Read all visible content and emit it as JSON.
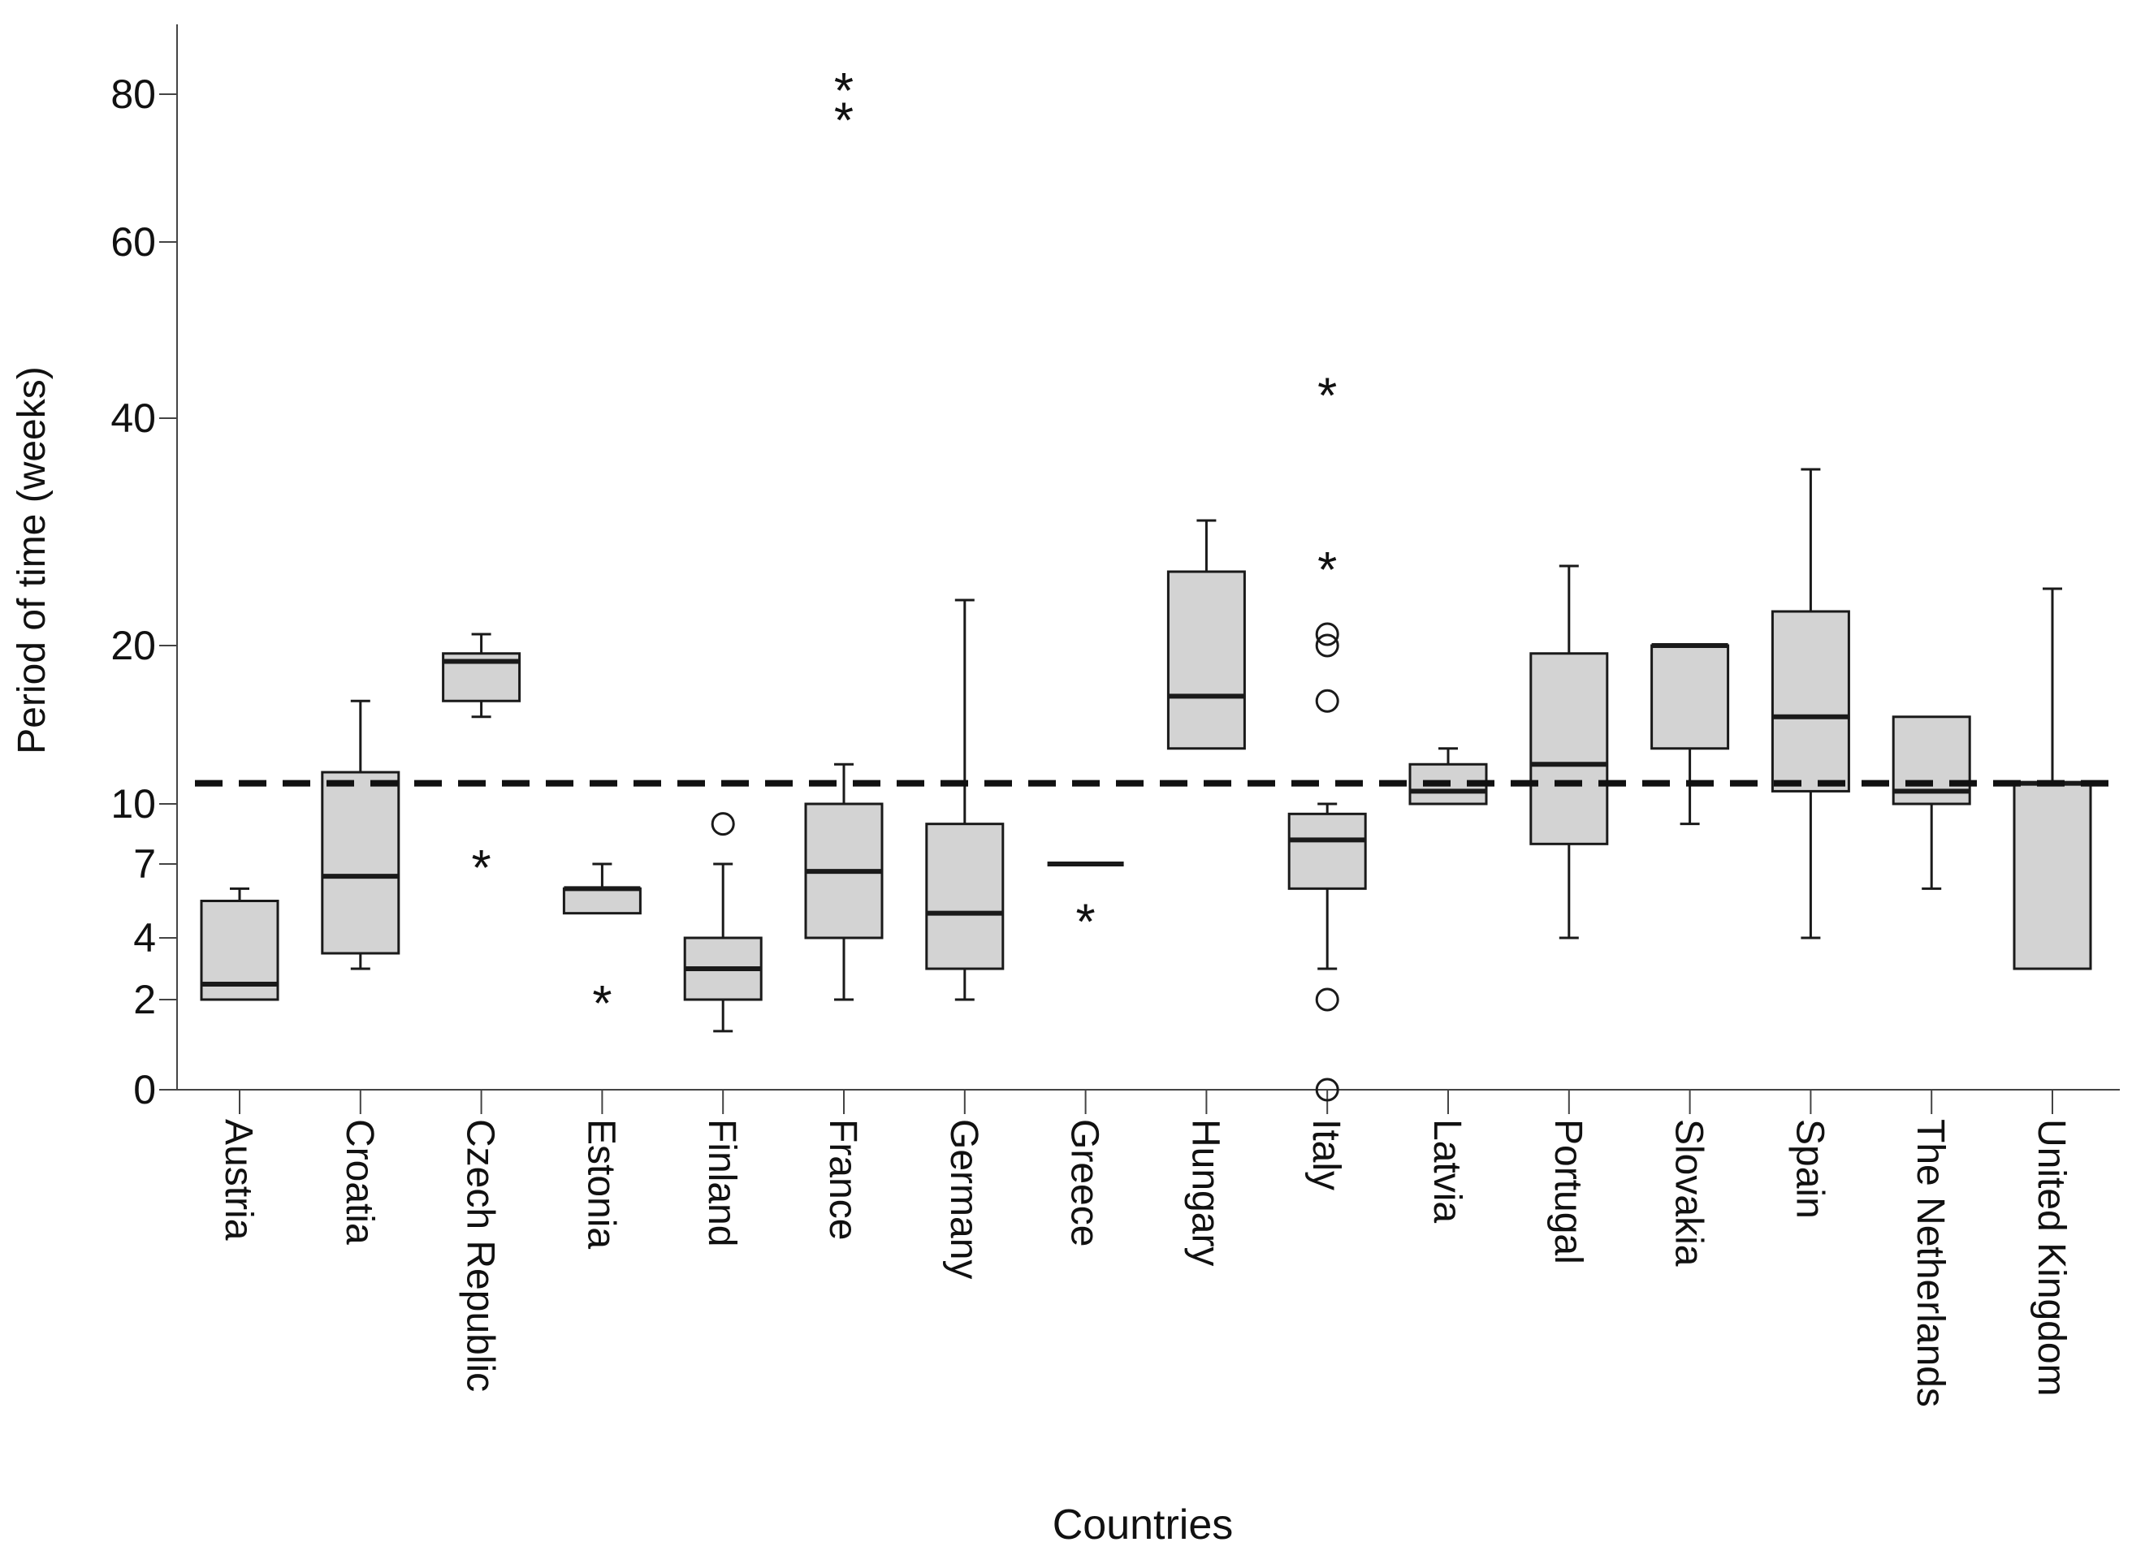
{
  "chart_data": {
    "type": "boxplot",
    "title": "",
    "xlabel": "Countries",
    "ylabel": "Period of time (weeks)",
    "y_ticks": [
      0,
      2,
      4,
      7,
      10,
      20,
      40,
      60,
      80
    ],
    "y_scale": "piecewise (non-linear tick spacing as drawn)",
    "reference_line": {
      "value": 11.3,
      "style": "dashed"
    },
    "categories": [
      "Austria",
      "Croatia",
      "Czech Republic",
      "Estonia",
      "Finland",
      "France",
      "Germany",
      "Greece",
      "Hungary",
      "Italy",
      "Latvia",
      "Portugal",
      "Slovakia",
      "Spain",
      "The Netherlands",
      "United Kingdom"
    ],
    "boxes": [
      {
        "name": "Austria",
        "min": 2,
        "q1": 2,
        "median": 2.5,
        "q3": 5.5,
        "max": 6,
        "outliers": [],
        "extremes": []
      },
      {
        "name": "Croatia",
        "min": 3,
        "q1": 3.5,
        "median": 6.5,
        "q3": 12,
        "max": 16.5,
        "outliers": [],
        "extremes": []
      },
      {
        "name": "Czech Republic",
        "min": 15.5,
        "q1": 16.5,
        "median": 19,
        "q3": 19.5,
        "max": 21,
        "outliers": [],
        "extremes": [
          7
        ]
      },
      {
        "name": "Estonia",
        "min": 5,
        "q1": 5,
        "median": 6,
        "q3": 6,
        "max": 7,
        "outliers": [],
        "extremes": [
          2
        ]
      },
      {
        "name": "Finland",
        "min": 1.3,
        "q1": 2,
        "median": 3,
        "q3": 4,
        "max": 7,
        "outliers": [
          9
        ],
        "extremes": []
      },
      {
        "name": "France",
        "min": 2,
        "q1": 4,
        "median": 6.7,
        "q3": 10,
        "max": 12.5,
        "outliers": [],
        "extremes": [
          77,
          81
        ]
      },
      {
        "name": "Germany",
        "min": 2,
        "q1": 3,
        "median": 5,
        "q3": 9,
        "max": 24,
        "outliers": [],
        "extremes": []
      },
      {
        "name": "Greece",
        "min": 7,
        "q1": 7,
        "median": 7,
        "q3": 7,
        "max": 7,
        "outliers": [],
        "extremes": [
          4.8
        ]
      },
      {
        "name": "Hungary",
        "min": 13.5,
        "q1": 13.5,
        "median": 16.8,
        "q3": 26.5,
        "max": 31,
        "outliers": [],
        "extremes": []
      },
      {
        "name": "Italy",
        "min": 3,
        "q1": 6,
        "median": 8.2,
        "q3": 9.5,
        "max": 10,
        "outliers": [
          0,
          2,
          16.5,
          20,
          21
        ],
        "extremes": [
          27,
          43
        ]
      },
      {
        "name": "Latvia",
        "min": 10,
        "q1": 10,
        "median": 10.8,
        "q3": 12.5,
        "max": 13.5,
        "outliers": [],
        "extremes": []
      },
      {
        "name": "Portugal",
        "min": 4,
        "q1": 8,
        "median": 12.5,
        "q3": 19.5,
        "max": 27,
        "outliers": [],
        "extremes": []
      },
      {
        "name": "Slovakia",
        "min": 9,
        "q1": 13.5,
        "median": 20,
        "q3": 20,
        "max": 20,
        "outliers": [],
        "extremes": []
      },
      {
        "name": "Spain",
        "min": 4,
        "q1": 10.8,
        "median": 15.5,
        "q3": 23,
        "max": 35.5,
        "outliers": [],
        "extremes": []
      },
      {
        "name": "The Netherlands",
        "min": 6,
        "q1": 10,
        "median": 10.8,
        "q3": 15.5,
        "max": 15.5,
        "outliers": [],
        "extremes": []
      },
      {
        "name": "United Kingdom",
        "min": 3,
        "q1": 3,
        "median": 11.3,
        "q3": 11.3,
        "max": 25,
        "outliers": [],
        "extremes": []
      }
    ],
    "legend": "none"
  },
  "style": {
    "box_fill": "#d3d3d3",
    "line_color": "#1a1a1a",
    "axis_color": "#444444"
  }
}
